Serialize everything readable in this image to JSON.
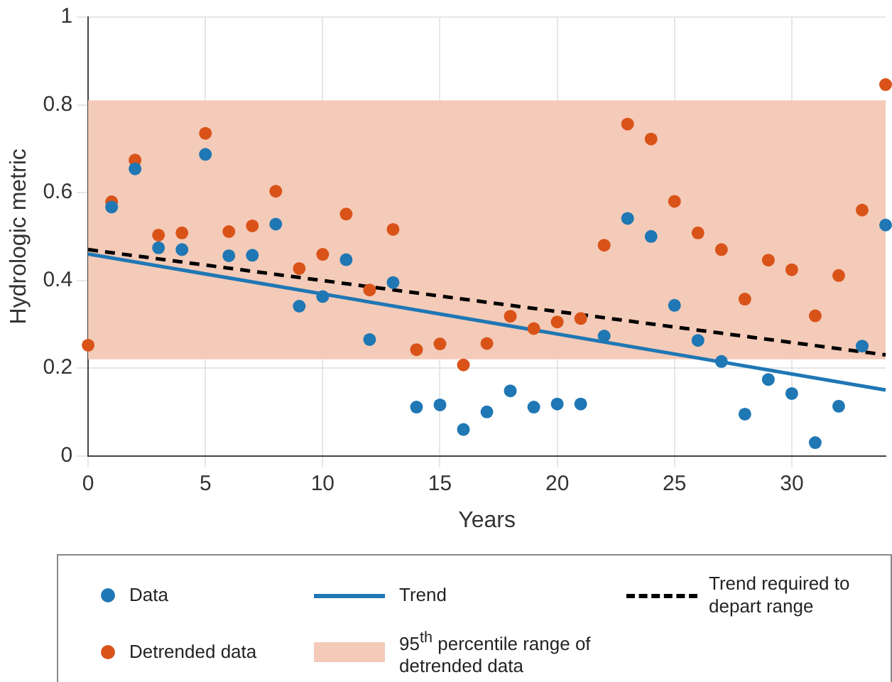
{
  "chart_data": {
    "type": "scatter",
    "xlabel": "Years",
    "ylabel": "Hydrologic metric",
    "xlim": [
      0,
      34
    ],
    "xticks": [
      0,
      5,
      10,
      15,
      20,
      25,
      30
    ],
    "ylim": [
      0,
      1
    ],
    "yticks": [
      0,
      0.2,
      0.4,
      0.6,
      0.8,
      1
    ],
    "grid": true,
    "legend": "bottom",
    "marker": "circle",
    "series": [
      {
        "name": "Data",
        "color": "#1f77b4",
        "x": [
          1,
          2,
          3,
          4,
          5,
          6,
          7,
          8,
          9,
          10,
          11,
          12,
          13,
          14,
          15,
          16,
          17,
          18,
          19,
          20,
          21,
          22,
          23,
          24,
          25,
          26,
          27,
          28,
          29,
          30,
          31,
          32,
          33,
          34
        ],
        "values": [
          0.567,
          0.654,
          0.474,
          0.47,
          0.687,
          0.456,
          0.457,
          0.528,
          0.341,
          0.363,
          0.447,
          0.265,
          0.395,
          0.111,
          0.116,
          0.06,
          0.1,
          0.148,
          0.111,
          0.118,
          0.118,
          0.273,
          0.541,
          0.5,
          0.343,
          0.263,
          0.215,
          0.095,
          0.174,
          0.142,
          0.03,
          0.113,
          0.25,
          0.526
        ]
      },
      {
        "name": "Detrended data",
        "color": "#d95319",
        "x": [
          0,
          1,
          2,
          3,
          4,
          5,
          6,
          7,
          8,
          9,
          10,
          11,
          12,
          13,
          14,
          15,
          16,
          17,
          18,
          19,
          20,
          21,
          22,
          23,
          24,
          25,
          26,
          27,
          28,
          29,
          30,
          31,
          32,
          33,
          34
        ],
        "values": [
          0.252,
          0.579,
          0.674,
          0.503,
          0.508,
          0.735,
          0.511,
          0.524,
          0.603,
          0.427,
          0.459,
          0.551,
          0.378,
          0.516,
          0.242,
          0.255,
          0.207,
          0.256,
          0.318,
          0.29,
          0.305,
          0.313,
          0.48,
          0.756,
          0.722,
          0.58,
          0.508,
          0.47,
          0.357,
          0.446,
          0.424,
          0.319,
          0.411,
          0.56,
          0.846
        ]
      },
      {
        "name": "Trend",
        "type": "line",
        "color": "#1f77b4",
        "line_style": "solid",
        "marker": "none",
        "x": [
          0,
          34
        ],
        "values": [
          0.46,
          0.15
        ]
      },
      {
        "name": "Trend required to depart range",
        "type": "line",
        "color": "#000000",
        "line_style": "dashed",
        "marker": "none",
        "x": [
          0,
          34
        ],
        "values": [
          0.47,
          0.23
        ]
      }
    ],
    "bands": [
      {
        "axis": "y",
        "from": 0.22,
        "to": 0.81,
        "label": "95$^{th}$ percentile range of detrended data",
        "color": "#f4cbb8"
      }
    ]
  }
}
